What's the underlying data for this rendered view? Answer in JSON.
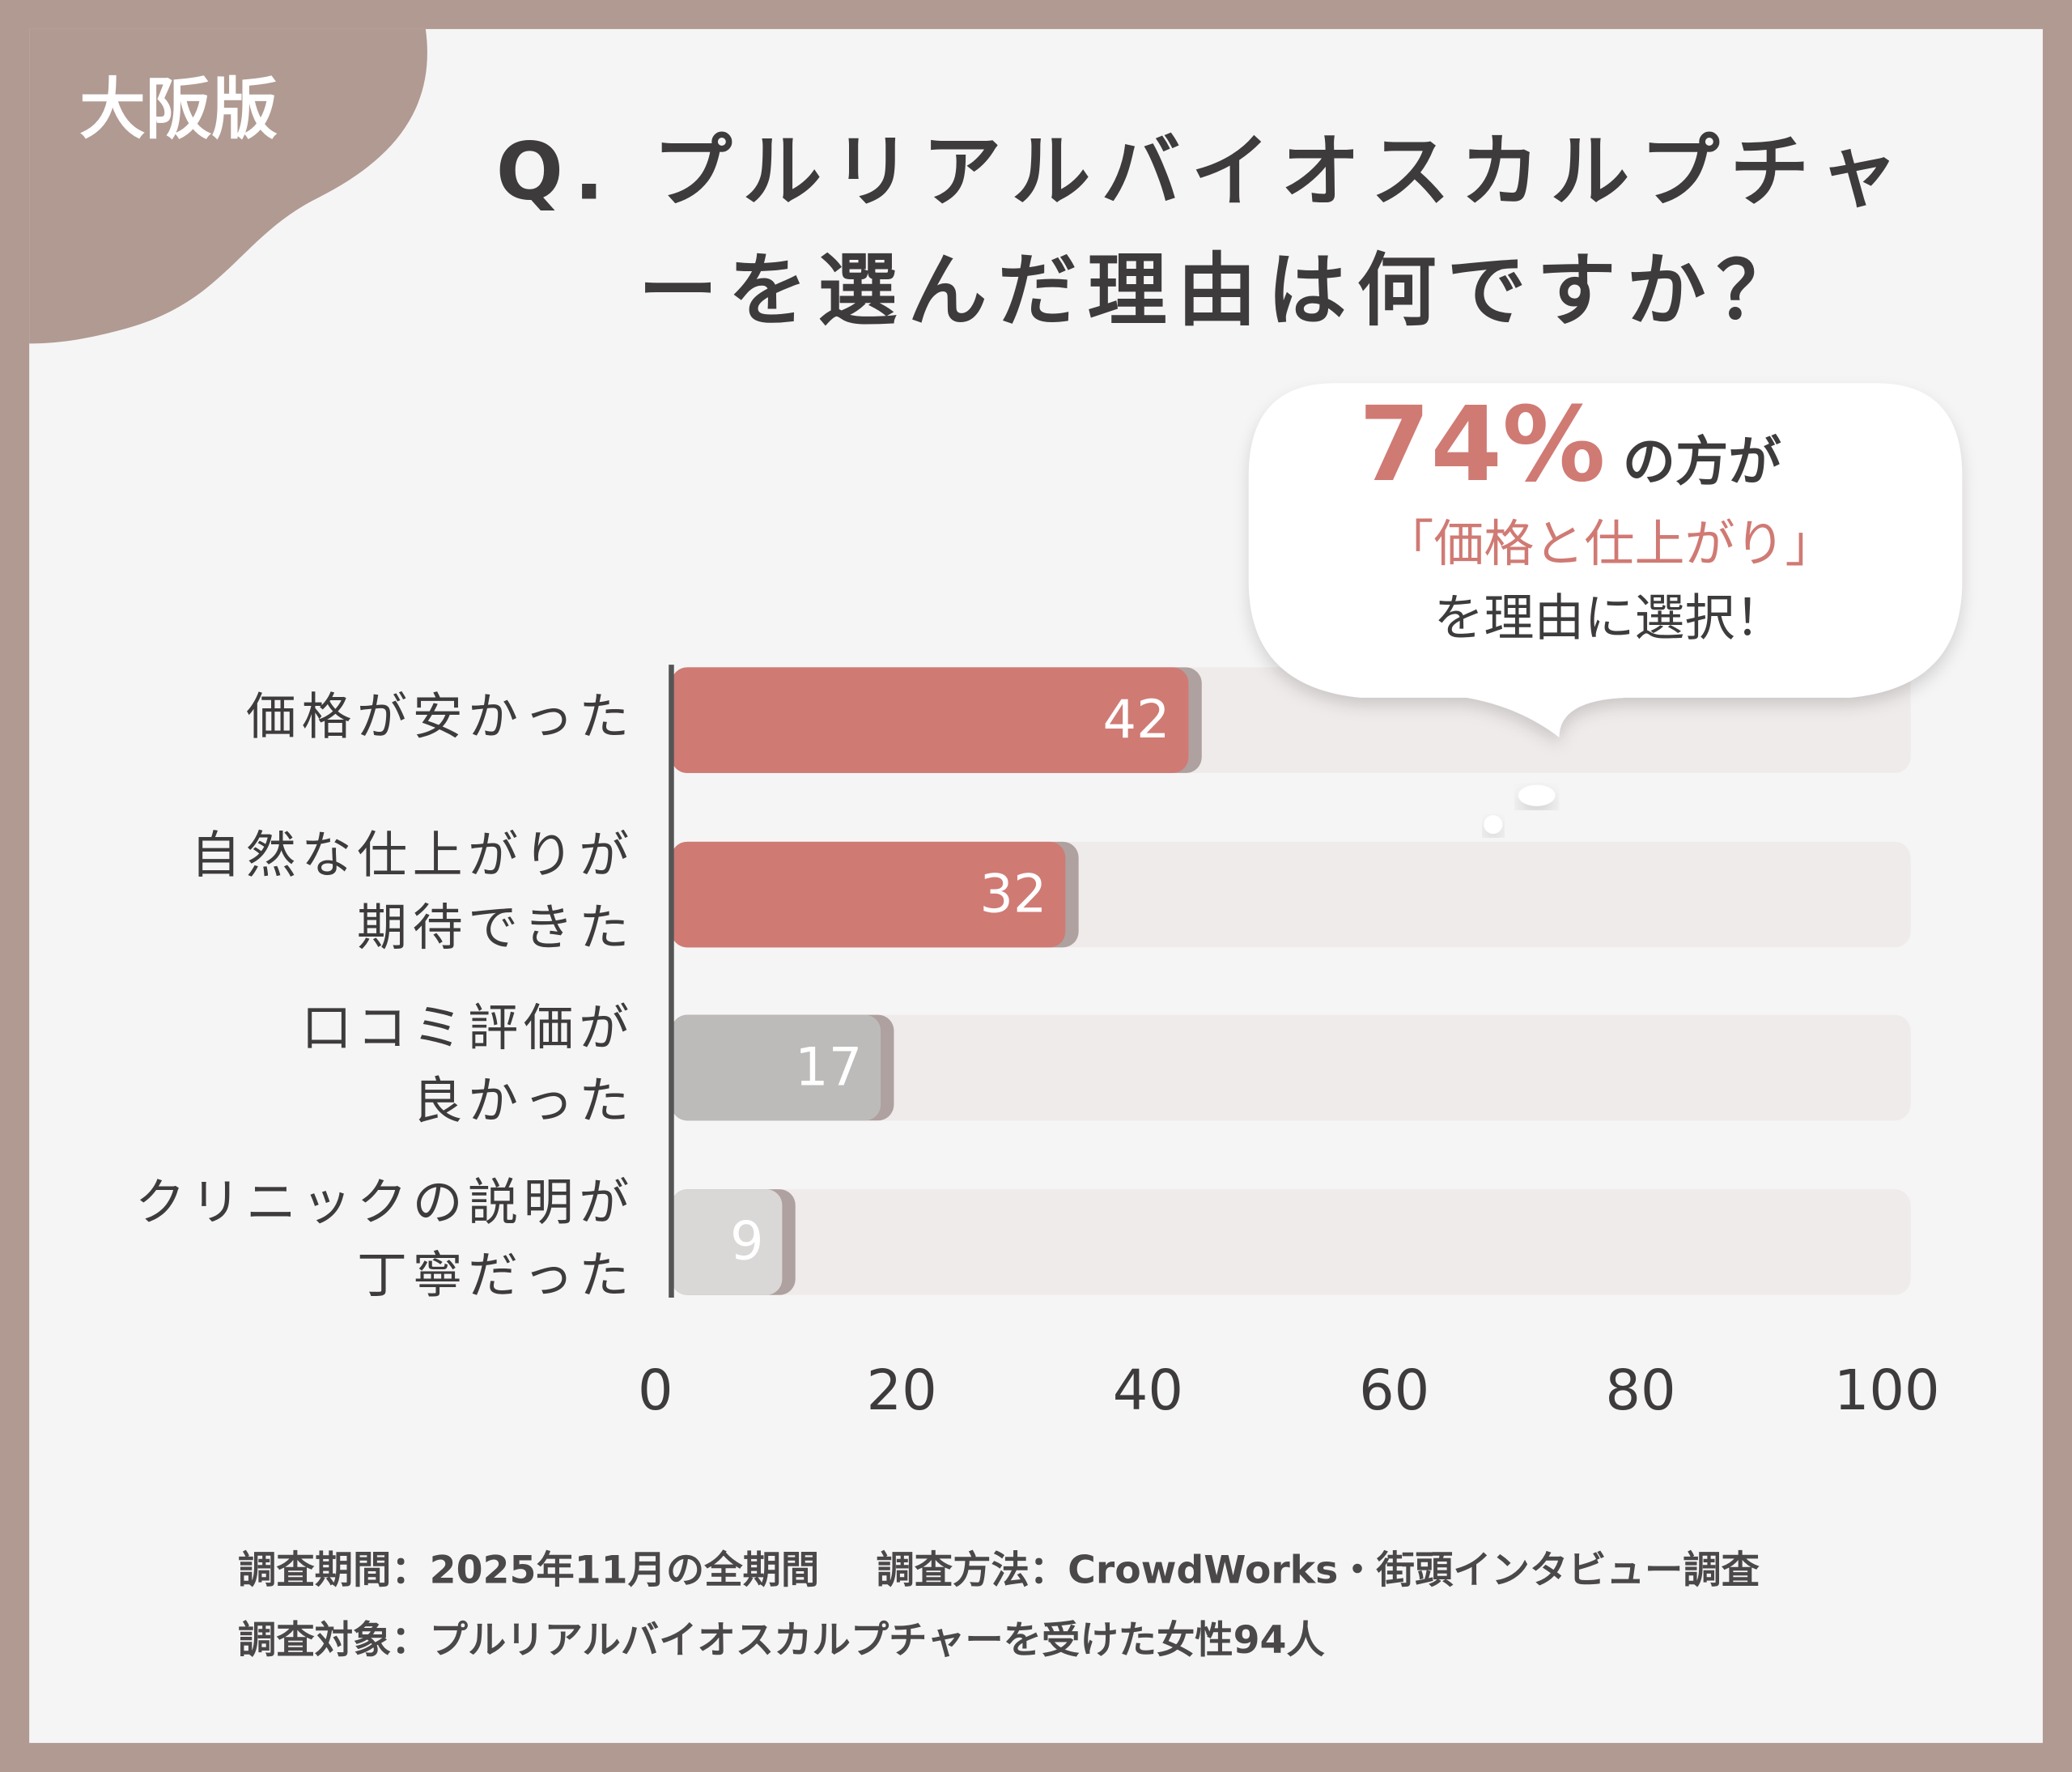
{
  "badge": "大阪版",
  "chart_data": {
    "type": "bar",
    "orientation": "horizontal",
    "title": [
      "Q. プルリアルバイオスカルプチャ",
      "ーを選んだ理由は何ですか？"
    ],
    "categories": [
      [
        "価格が安かった"
      ],
      [
        "自然な仕上がりが",
        "期待できた"
      ],
      [
        "口コミ評価が",
        "良かった"
      ],
      [
        "クリニックの説明が",
        "丁寧だった"
      ]
    ],
    "values": [
      42,
      32,
      17,
      9
    ],
    "colors": [
      "#d07a74",
      "#d07a74",
      "#bdbbba",
      "#dad8d7"
    ],
    "xlim": [
      0,
      100
    ],
    "xticks": [
      0,
      20,
      40,
      60,
      80,
      100
    ],
    "annotation": {
      "highlight": "74%",
      "lines": [
        "の方が",
        "「価格と仕上がり」",
        "を理由に選択！"
      ]
    }
  },
  "footer": [
    "調査期間：2025年11月の全期間",
    "調査方法：CrowdWorks・街頭インタビュー調査",
    "調査対象：プルリアルバイオスカルプチャーを受けた女性94人"
  ]
}
